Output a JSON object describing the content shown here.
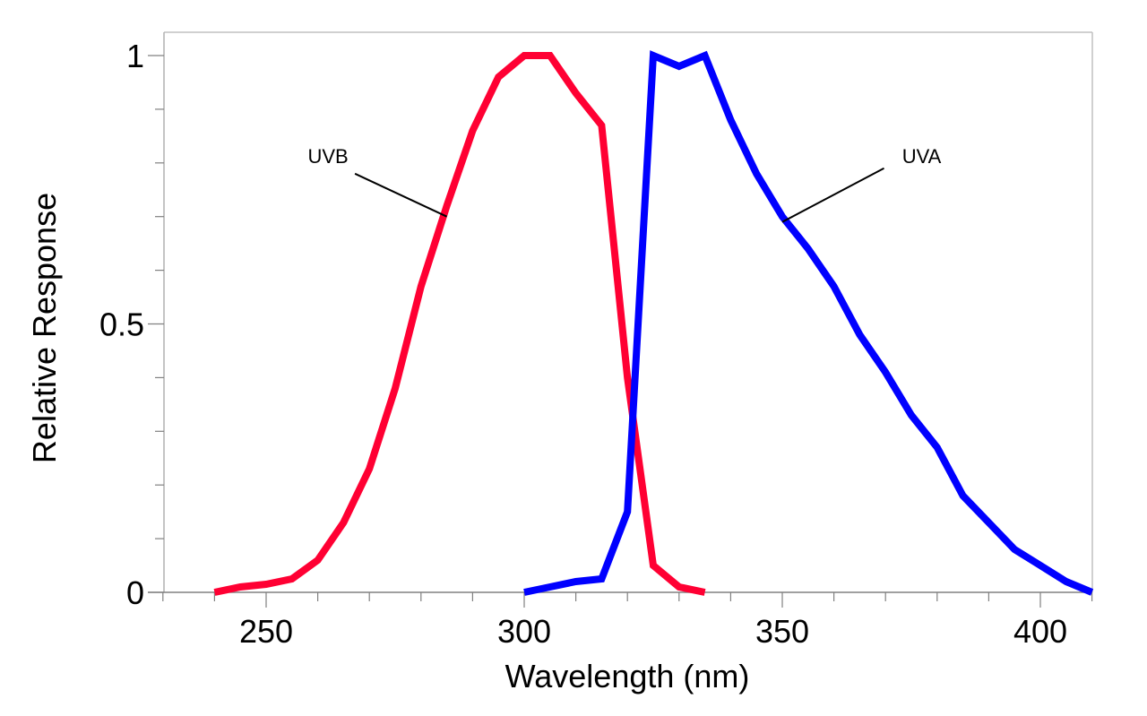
{
  "chart_data": {
    "type": "line",
    "title": "",
    "xlabel": "Wavelength (nm)",
    "ylabel": "Relative Response",
    "xlim": [
      230,
      410
    ],
    "ylim": [
      0,
      1.05
    ],
    "x_ticks": [
      250,
      300,
      350,
      400
    ],
    "x_tick_labels": [
      "250",
      "300",
      "350",
      "400"
    ],
    "x_minor_step": 10,
    "y_ticks": [
      0,
      0.5,
      1
    ],
    "y_tick_labels": [
      "0",
      "0.5",
      "1"
    ],
    "y_minor_step": 0.1,
    "grid": false,
    "legend": "none",
    "series": [
      {
        "name": "UVB",
        "color": "#ff0033",
        "x": [
          240,
          245,
          250,
          255,
          260,
          265,
          270,
          275,
          280,
          285,
          290,
          295,
          300,
          305,
          310,
          315,
          320,
          325,
          330,
          335
        ],
        "y": [
          0,
          0.01,
          0.015,
          0.025,
          0.06,
          0.13,
          0.23,
          0.38,
          0.57,
          0.72,
          0.86,
          0.96,
          1.0,
          1.0,
          0.93,
          0.87,
          0.4,
          0.05,
          0.01,
          0
        ]
      },
      {
        "name": "UVA",
        "color": "#0000ff",
        "x": [
          300,
          305,
          310,
          315,
          320,
          325,
          330,
          335,
          340,
          345,
          350,
          355,
          360,
          365,
          370,
          375,
          380,
          385,
          390,
          395,
          400,
          405,
          410
        ],
        "y": [
          0,
          0.01,
          0.02,
          0.025,
          0.15,
          1.0,
          0.98,
          1.0,
          0.88,
          0.78,
          0.7,
          0.64,
          0.57,
          0.48,
          0.41,
          0.33,
          0.27,
          0.18,
          0.13,
          0.08,
          0.05,
          0.02,
          0
        ]
      }
    ],
    "annotations": [
      {
        "text": "UVB",
        "series": "UVB",
        "label_at": [
          262,
          0.8
        ],
        "points_to": [
          285,
          0.7
        ]
      },
      {
        "text": "UVA",
        "series": "UVA",
        "label_at": [
          377,
          0.8
        ],
        "points_to": [
          350,
          0.69
        ]
      }
    ]
  }
}
